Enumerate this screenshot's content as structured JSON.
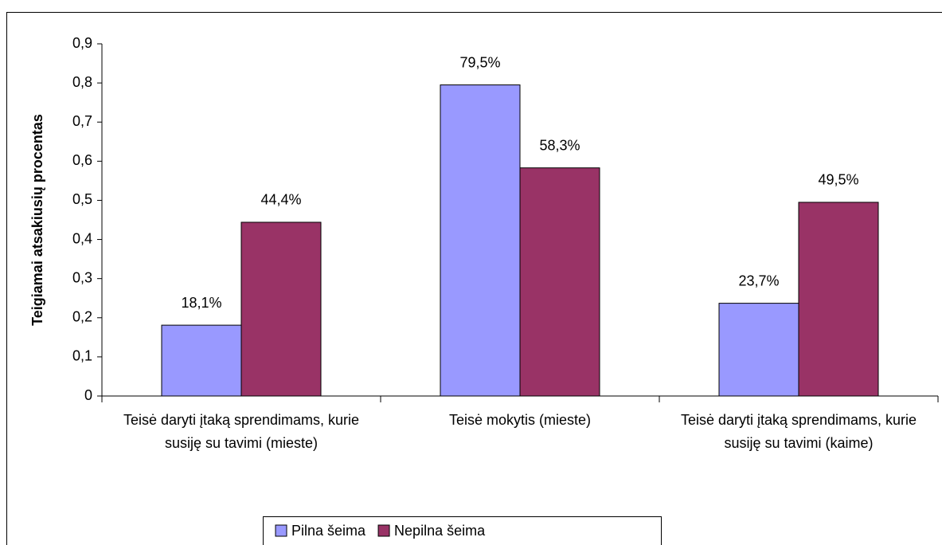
{
  "chart_data": {
    "type": "bar",
    "y_label": "Teigiamai atsakiusių procentas",
    "categories": [
      "Teisė daryti įtaką sprendimams, kurie susiję su tavimi (mieste)",
      "Teisė mokytis (mieste)",
      "Teisė daryti įtaką sprendimams, kurie susiję su tavimi (kaime)"
    ],
    "series": [
      {
        "name": "Pilna šeima",
        "color": "#9999ff",
        "values": [
          0.181,
          0.795,
          0.237
        ],
        "value_labels": [
          "18,1%",
          "79,5%",
          "23,7%"
        ]
      },
      {
        "name": "Nepilna šeima",
        "color": "#993366",
        "values": [
          0.444,
          0.583,
          0.495
        ],
        "value_labels": [
          "44,4%",
          "58,3%",
          "49,5%"
        ]
      }
    ],
    "ylim": [
      0,
      0.9
    ],
    "yticks": [
      0,
      {
        "value": 0.1,
        "label": "0,1"
      },
      {
        "value": 0.2,
        "label": "0,2"
      },
      {
        "value": 0.3,
        "label": "0,3"
      },
      {
        "value": 0.4,
        "label": "0,4"
      },
      {
        "value": 0.5,
        "label": "0,5"
      },
      {
        "value": 0.6,
        "label": "0,6"
      },
      {
        "value": 0.7,
        "label": "0,7"
      },
      {
        "value": 0.8,
        "label": "0,8"
      },
      {
        "value": 0.9,
        "label": "0,9"
      }
    ],
    "legend": "bottom"
  }
}
